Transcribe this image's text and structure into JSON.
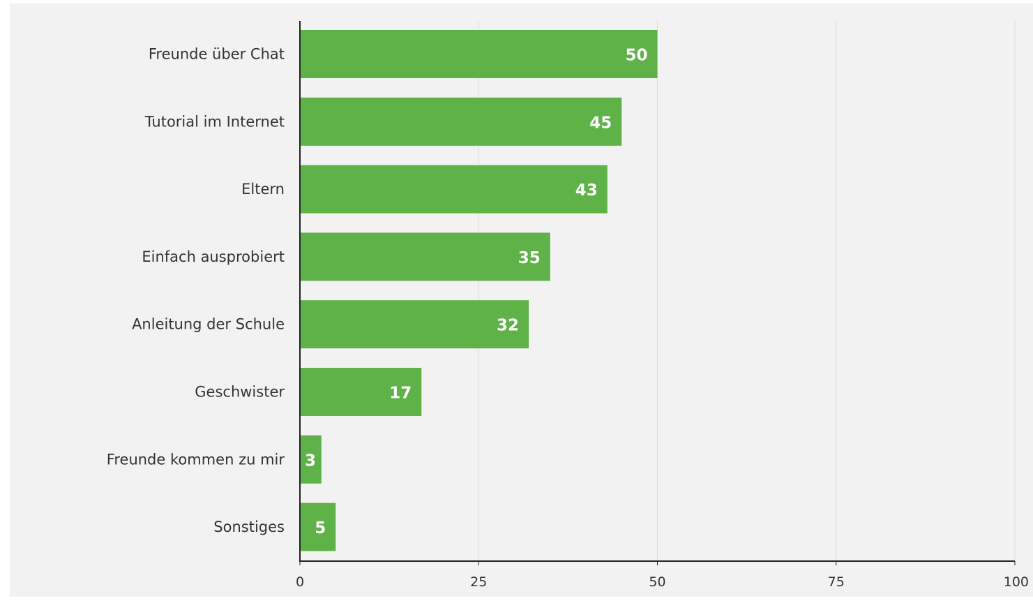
{
  "chart_data": {
    "type": "bar",
    "orientation": "horizontal",
    "categories": [
      "Freunde über Chat",
      "Tutorial im Internet",
      "Eltern",
      "Einfach ausprobiert",
      "Anleitung der Schule",
      "Geschwister",
      "Freunde kommen zu mir",
      "Sonstiges"
    ],
    "values": [
      50,
      45,
      43,
      35,
      32,
      17,
      3,
      5
    ],
    "value_labels": [
      "50",
      "45",
      "43",
      "35",
      "32",
      "17",
      "3",
      "5"
    ],
    "xlim": [
      0,
      100
    ],
    "x_ticks": [
      0,
      25,
      50,
      75,
      100
    ],
    "x_tick_labels": [
      "0",
      "25",
      "50",
      "75",
      "100"
    ],
    "grid": true,
    "colors": {
      "bar": "#5fb247",
      "background": "#f2f2f2",
      "grid": "#dcdcdc",
      "axis": "#222222",
      "value_text": "#ffffff"
    }
  }
}
